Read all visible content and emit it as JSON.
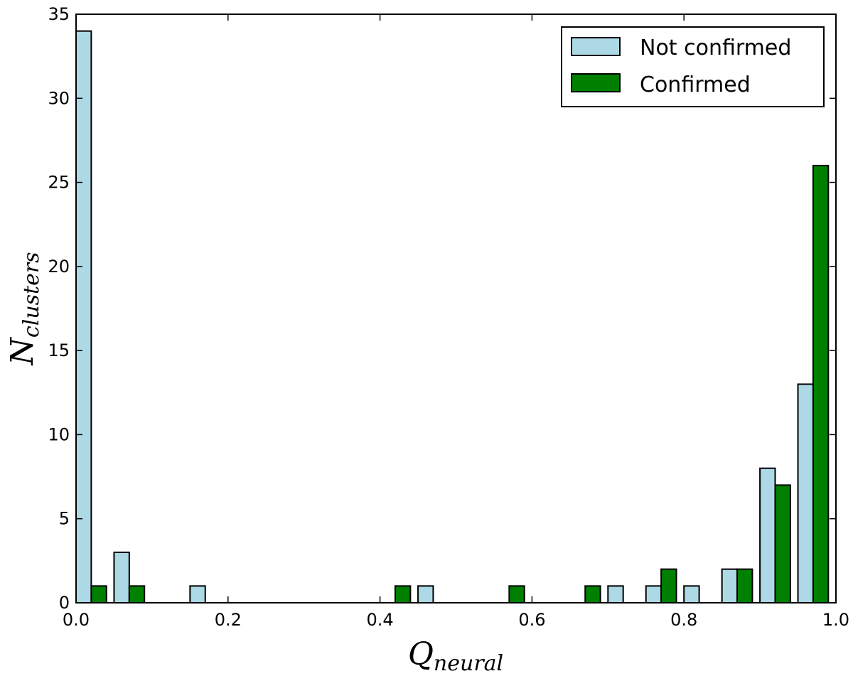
{
  "chart_data": {
    "type": "bar",
    "title": "",
    "xlabel": {
      "main": "Q",
      "sub": "neural"
    },
    "ylabel": {
      "main": "N",
      "sub": "clusters"
    },
    "xlim": [
      0.0,
      1.0
    ],
    "ylim": [
      0,
      35
    ],
    "x_ticks": [
      "0.0",
      "0.2",
      "0.4",
      "0.6",
      "0.8",
      "1.0"
    ],
    "y_ticks": [
      "0",
      "5",
      "10",
      "15",
      "20",
      "25",
      "30",
      "35"
    ],
    "bin_width": 0.05,
    "bin_starts": [
      0.0,
      0.05,
      0.1,
      0.15,
      0.2,
      0.25,
      0.3,
      0.35,
      0.4,
      0.45,
      0.5,
      0.55,
      0.6,
      0.65,
      0.7,
      0.75,
      0.8,
      0.85,
      0.9,
      0.95
    ],
    "series": [
      {
        "name": "Not confirmed",
        "color": "#add8e6",
        "values": [
          34,
          3,
          0,
          1,
          0,
          0,
          0,
          0,
          0,
          1,
          0,
          0,
          0,
          0,
          1,
          1,
          1,
          2,
          8,
          13
        ]
      },
      {
        "name": "Confirmed",
        "color": "#008000",
        "values": [
          1,
          1,
          0,
          0,
          0,
          0,
          0,
          0,
          1,
          0,
          0,
          1,
          0,
          1,
          0,
          2,
          0,
          2,
          7,
          26
        ]
      }
    ],
    "legend": {
      "position": "top-right"
    },
    "grid": false
  }
}
